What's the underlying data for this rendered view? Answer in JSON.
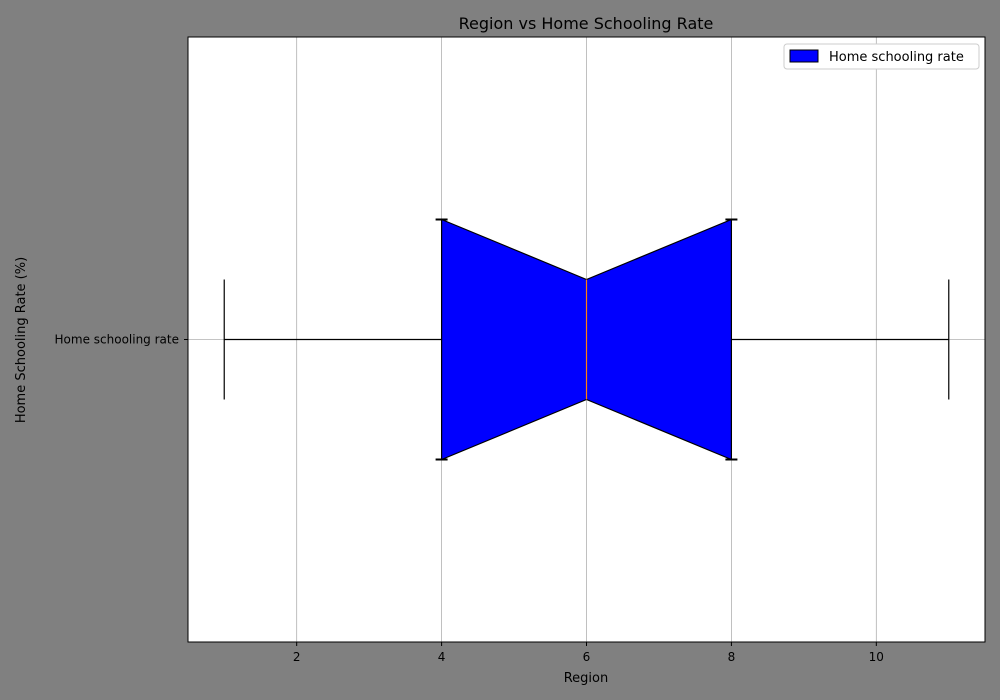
{
  "chart_data": {
    "type": "boxplot",
    "title": "Region vs Home Schooling Rate",
    "xlabel": "Region",
    "ylabel": "Home Schooling Rate (%)",
    "orientation": "horizontal",
    "notched": true,
    "xlim": [
      0.5,
      11.5
    ],
    "xticks": [
      2,
      4,
      6,
      8,
      10
    ],
    "grid": true,
    "legend": {
      "position": "top-right",
      "entries": [
        "Home schooling rate"
      ]
    },
    "series": [
      {
        "name": "Home schooling rate",
        "whisker_low": 1,
        "q1": 4,
        "median": 6,
        "q3": 8,
        "whisker_high": 11,
        "notch_low": 4.2,
        "notch_high": 7.8,
        "box_color": "#0000ff",
        "median_color": "#ff7f0e"
      }
    ]
  }
}
